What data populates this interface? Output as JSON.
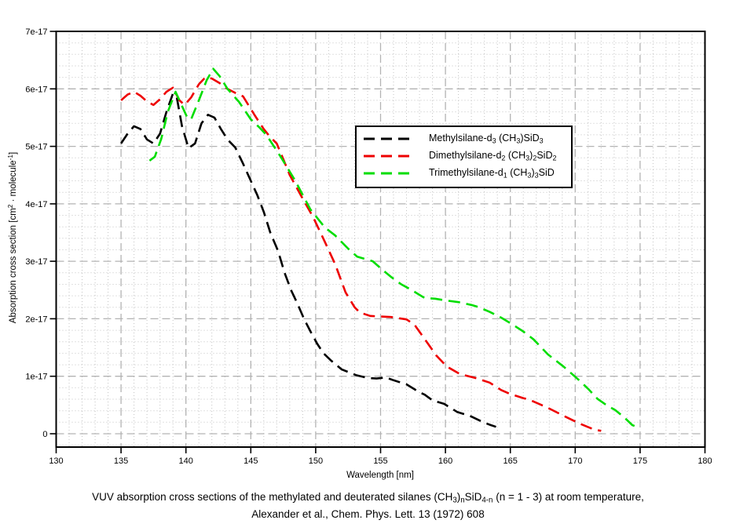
{
  "caption": {
    "line1_parts": [
      [
        "VUV absorption cross sections of the methylated and deuterated silanes (CH",
        ""
      ],
      [
        "3",
        "sub"
      ],
      [
        ")",
        ""
      ],
      [
        "n",
        "sub"
      ],
      [
        "SiD",
        ""
      ],
      [
        "4-n",
        "sub"
      ],
      [
        " (n = 1 - 3) at room temperature,",
        ""
      ]
    ],
    "line2": "Alexander et al., Chem. Phys. Lett. 13 (1972) 608"
  },
  "chart_data": {
    "type": "line",
    "title": "",
    "xlabel": "Wavelength [nm]",
    "ylabel_parts": [
      [
        "Absorption cross section [cm",
        ""
      ],
      [
        "2",
        "sup"
      ],
      [
        " · molecule",
        ""
      ],
      [
        "-1",
        "sup"
      ],
      [
        "]",
        ""
      ]
    ],
    "x_axis": {
      "min": 130,
      "max": 180,
      "major_step": 5,
      "minor_step": 1,
      "tick_values": [
        130,
        135,
        140,
        145,
        150,
        155,
        160,
        165,
        170,
        175,
        180
      ],
      "tick_labels": [
        "130",
        "135",
        "140",
        "145",
        "150",
        "155",
        "160",
        "165",
        "170",
        "175",
        "180"
      ]
    },
    "y_axis": {
      "min": -0.23,
      "max": 7,
      "major_step": 1,
      "minor_step": 0.2,
      "units_of_values": "1e-17 cm^2 · molecule^-1",
      "tick_values": [
        0,
        1,
        2,
        3,
        4,
        5,
        6,
        7
      ],
      "tick_labels": [
        "0",
        "1e-17",
        "2e-17",
        "3e-17",
        "4e-17",
        "5e-17",
        "6e-17",
        "7e-17"
      ]
    },
    "grid": {
      "minor_color": "#c3c3c3",
      "major_color": "#b3b3b3",
      "minor_style": "dotted",
      "major_style": "dashed"
    },
    "legend_position": "inside-upper-right",
    "series": [
      {
        "plain_name": "Methylsilane-d3 (CH3)SiD3",
        "label_parts": [
          [
            "Methylsilane-d",
            ""
          ],
          [
            "3",
            "sub"
          ],
          [
            " (CH",
            ""
          ],
          [
            "3",
            "sub"
          ],
          [
            ")SiD",
            ""
          ],
          [
            "3",
            "sub"
          ]
        ],
        "color": "#000000",
        "line_style": "dashed",
        "points": [
          [
            135,
            5.05
          ],
          [
            135.5,
            5.22
          ],
          [
            136,
            5.35
          ],
          [
            136.5,
            5.3
          ],
          [
            137,
            5.12
          ],
          [
            137.5,
            5.05
          ],
          [
            138,
            5.22
          ],
          [
            138.5,
            5.6
          ],
          [
            139,
            5.92
          ],
          [
            139.3,
            5.85
          ],
          [
            139.7,
            5.35
          ],
          [
            140.2,
            4.97
          ],
          [
            140.7,
            5.05
          ],
          [
            141.2,
            5.4
          ],
          [
            141.7,
            5.55
          ],
          [
            142.2,
            5.5
          ],
          [
            142.7,
            5.3
          ],
          [
            143.2,
            5.12
          ],
          [
            143.8,
            4.98
          ],
          [
            144.4,
            4.7
          ],
          [
            145,
            4.4
          ],
          [
            145.5,
            4.15
          ],
          [
            146,
            3.86
          ],
          [
            146.5,
            3.5
          ],
          [
            147.1,
            3.18
          ],
          [
            147.6,
            2.8
          ],
          [
            148.1,
            2.5
          ],
          [
            148.6,
            2.26
          ],
          [
            149.1,
            2.0
          ],
          [
            149.6,
            1.78
          ],
          [
            150.1,
            1.57
          ],
          [
            150.6,
            1.4
          ],
          [
            151.2,
            1.27
          ],
          [
            152,
            1.12
          ],
          [
            153.1,
            1.02
          ],
          [
            154,
            0.97
          ],
          [
            154.7,
            0.96
          ],
          [
            155.4,
            0.98
          ],
          [
            156,
            0.93
          ],
          [
            157,
            0.86
          ],
          [
            158,
            0.72
          ],
          [
            158.4,
            0.68
          ],
          [
            159,
            0.58
          ],
          [
            159.9,
            0.52
          ],
          [
            160.9,
            0.38
          ],
          [
            161.9,
            0.31
          ],
          [
            162.9,
            0.2
          ],
          [
            163.5,
            0.15
          ],
          [
            163.9,
            0.12
          ]
        ]
      },
      {
        "plain_name": "Dimethylsilane-d2 (CH3)2SiD2",
        "label_parts": [
          [
            "Dimethylsilane-d",
            ""
          ],
          [
            "2",
            "sub"
          ],
          [
            " (CH",
            ""
          ],
          [
            "3",
            "sub"
          ],
          [
            ")",
            ""
          ],
          [
            "2",
            "sub"
          ],
          [
            "SiD",
            ""
          ],
          [
            "2",
            "sub"
          ]
        ],
        "color": "#ee0000",
        "line_style": "dashed",
        "points": [
          [
            135,
            5.8
          ],
          [
            135.5,
            5.9
          ],
          [
            136,
            5.95
          ],
          [
            136.5,
            5.88
          ],
          [
            137,
            5.78
          ],
          [
            137.5,
            5.72
          ],
          [
            138,
            5.82
          ],
          [
            138.5,
            5.95
          ],
          [
            139,
            6.02
          ],
          [
            139.5,
            5.8
          ],
          [
            139.9,
            5.72
          ],
          [
            140.4,
            5.85
          ],
          [
            141,
            6.08
          ],
          [
            141.5,
            6.2
          ],
          [
            142,
            6.18
          ],
          [
            142.6,
            6.1
          ],
          [
            143.2,
            6.0
          ],
          [
            143.8,
            5.93
          ],
          [
            144.4,
            5.87
          ],
          [
            145.3,
            5.54
          ],
          [
            146,
            5.3
          ],
          [
            146.5,
            5.16
          ],
          [
            147,
            5.05
          ],
          [
            147.5,
            4.78
          ],
          [
            148,
            4.5
          ],
          [
            148.9,
            4.13
          ],
          [
            149.8,
            3.77
          ],
          [
            150.7,
            3.34
          ],
          [
            151.5,
            2.95
          ],
          [
            152.3,
            2.46
          ],
          [
            153,
            2.2
          ],
          [
            153.4,
            2.11
          ],
          [
            154.2,
            2.05
          ],
          [
            155,
            2.04
          ],
          [
            155.8,
            2.03
          ],
          [
            157,
            1.99
          ],
          [
            157.6,
            1.9
          ],
          [
            158.3,
            1.68
          ],
          [
            159.3,
            1.36
          ],
          [
            160.1,
            1.17
          ],
          [
            161.1,
            1.04
          ],
          [
            162.3,
            0.97
          ],
          [
            163.4,
            0.89
          ],
          [
            164.3,
            0.76
          ],
          [
            164.9,
            0.7
          ],
          [
            166,
            0.62
          ],
          [
            166.5,
            0.59
          ],
          [
            167.9,
            0.45
          ],
          [
            169.3,
            0.29
          ],
          [
            170.3,
            0.18
          ],
          [
            171.5,
            0.07
          ],
          [
            172,
            0.05
          ]
        ]
      },
      {
        "plain_name": "Trimethylsilane-d1 (CH3)3SiD",
        "label_parts": [
          [
            "Trimethylsilane-d",
            ""
          ],
          [
            "1",
            "sub"
          ],
          [
            " (CH",
            ""
          ],
          [
            "3",
            "sub"
          ],
          [
            ")",
            ""
          ],
          [
            "3",
            "sub"
          ],
          [
            "SiD",
            ""
          ]
        ],
        "color": "#00dd00",
        "line_style": "dashed",
        "points": [
          [
            137.2,
            4.75
          ],
          [
            137.6,
            4.82
          ],
          [
            138.1,
            5.13
          ],
          [
            138.6,
            5.6
          ],
          [
            139.2,
            5.95
          ],
          [
            139.6,
            5.75
          ],
          [
            140.1,
            5.5
          ],
          [
            140.4,
            5.47
          ],
          [
            141,
            5.8
          ],
          [
            141.6,
            6.15
          ],
          [
            142.1,
            6.35
          ],
          [
            142.6,
            6.22
          ],
          [
            143.2,
            6.0
          ],
          [
            144.1,
            5.77
          ],
          [
            145,
            5.47
          ],
          [
            145.7,
            5.32
          ],
          [
            146.2,
            5.2
          ],
          [
            147.3,
            4.82
          ],
          [
            148.4,
            4.41
          ],
          [
            149.6,
            3.9
          ],
          [
            150.7,
            3.59
          ],
          [
            151.5,
            3.45
          ],
          [
            152.5,
            3.22
          ],
          [
            153.2,
            3.08
          ],
          [
            154.4,
            3.0
          ],
          [
            155.1,
            2.86
          ],
          [
            155.8,
            2.73
          ],
          [
            156.6,
            2.6
          ],
          [
            157.4,
            2.5
          ],
          [
            158.4,
            2.36
          ],
          [
            159.2,
            2.35
          ],
          [
            160,
            2.32
          ],
          [
            161,
            2.29
          ],
          [
            162,
            2.24
          ],
          [
            162.6,
            2.2
          ],
          [
            163.4,
            2.12
          ],
          [
            164.3,
            2.02
          ],
          [
            165.1,
            1.91
          ],
          [
            166,
            1.78
          ],
          [
            166.8,
            1.64
          ],
          [
            167.9,
            1.38
          ],
          [
            169.1,
            1.17
          ],
          [
            170.3,
            0.93
          ],
          [
            171,
            0.78
          ],
          [
            171.7,
            0.61
          ],
          [
            172.4,
            0.5
          ],
          [
            173.1,
            0.41
          ],
          [
            173.8,
            0.28
          ],
          [
            174.4,
            0.15
          ],
          [
            175,
            0.1
          ]
        ]
      }
    ]
  }
}
